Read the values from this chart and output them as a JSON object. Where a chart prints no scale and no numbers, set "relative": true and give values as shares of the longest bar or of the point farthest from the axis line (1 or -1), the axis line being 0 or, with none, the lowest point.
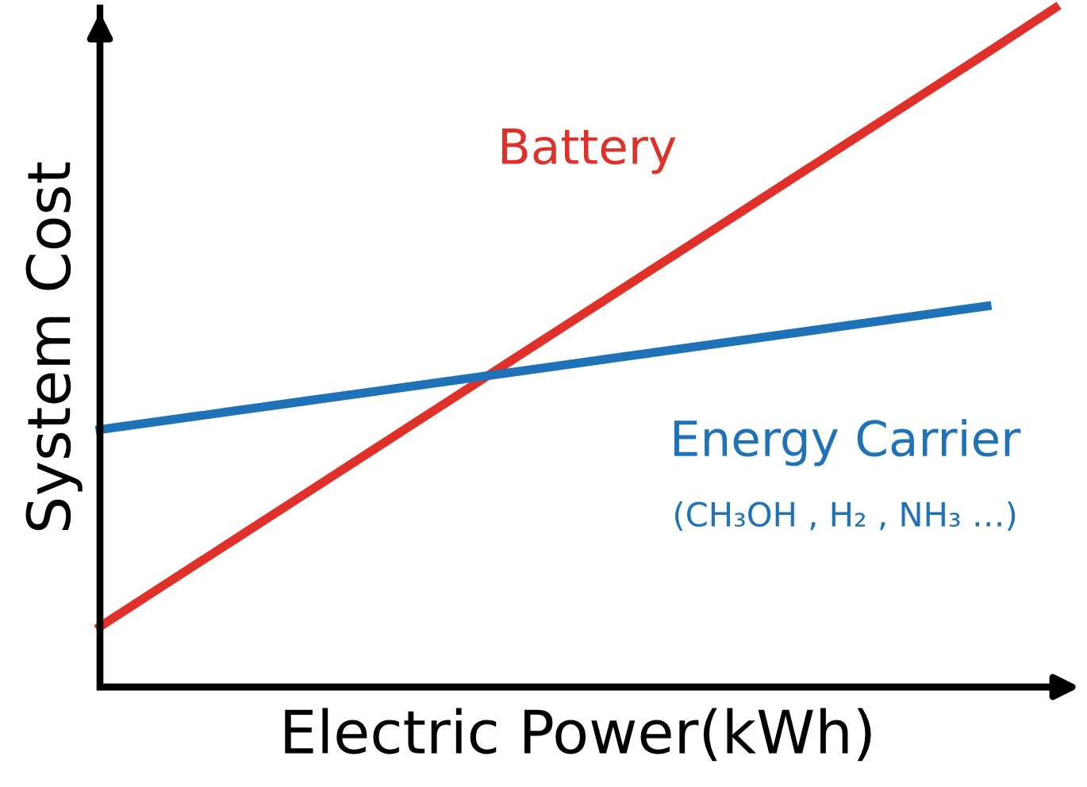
{
  "chart_data": {
    "type": "line",
    "relative": true,
    "xlabel": "Electric Power(kWh)",
    "ylabel": "System Cost",
    "categories": [
      null,
      null,
      null,
      null,
      null,
      null,
      null,
      null,
      null,
      null,
      null,
      null,
      null,
      null,
      null
    ],
    "series": [
      {
        "name": "Battery",
        "color": "#e0302a",
        "values": [
          0.089,
          0.154,
          0.219,
          0.284,
          0.349,
          0.414,
          0.479,
          0.544,
          0.609,
          0.674,
          0.739,
          0.804,
          0.869,
          0.934,
          1.0
        ]
      },
      {
        "name": "Energy Carrier",
        "color": "#1f72b8",
        "values": [
          0.379,
          0.393,
          0.407,
          0.421,
          0.435,
          0.449,
          0.463,
          0.477,
          0.491,
          0.505,
          0.519,
          0.533,
          0.547,
          0.561,
          null
        ]
      }
    ],
    "annotations": [
      "(CH₃OH , H₂ , NH₃ …)"
    ],
    "grid": false,
    "legend": false,
    "marker": "none",
    "line_style": "solid"
  }
}
